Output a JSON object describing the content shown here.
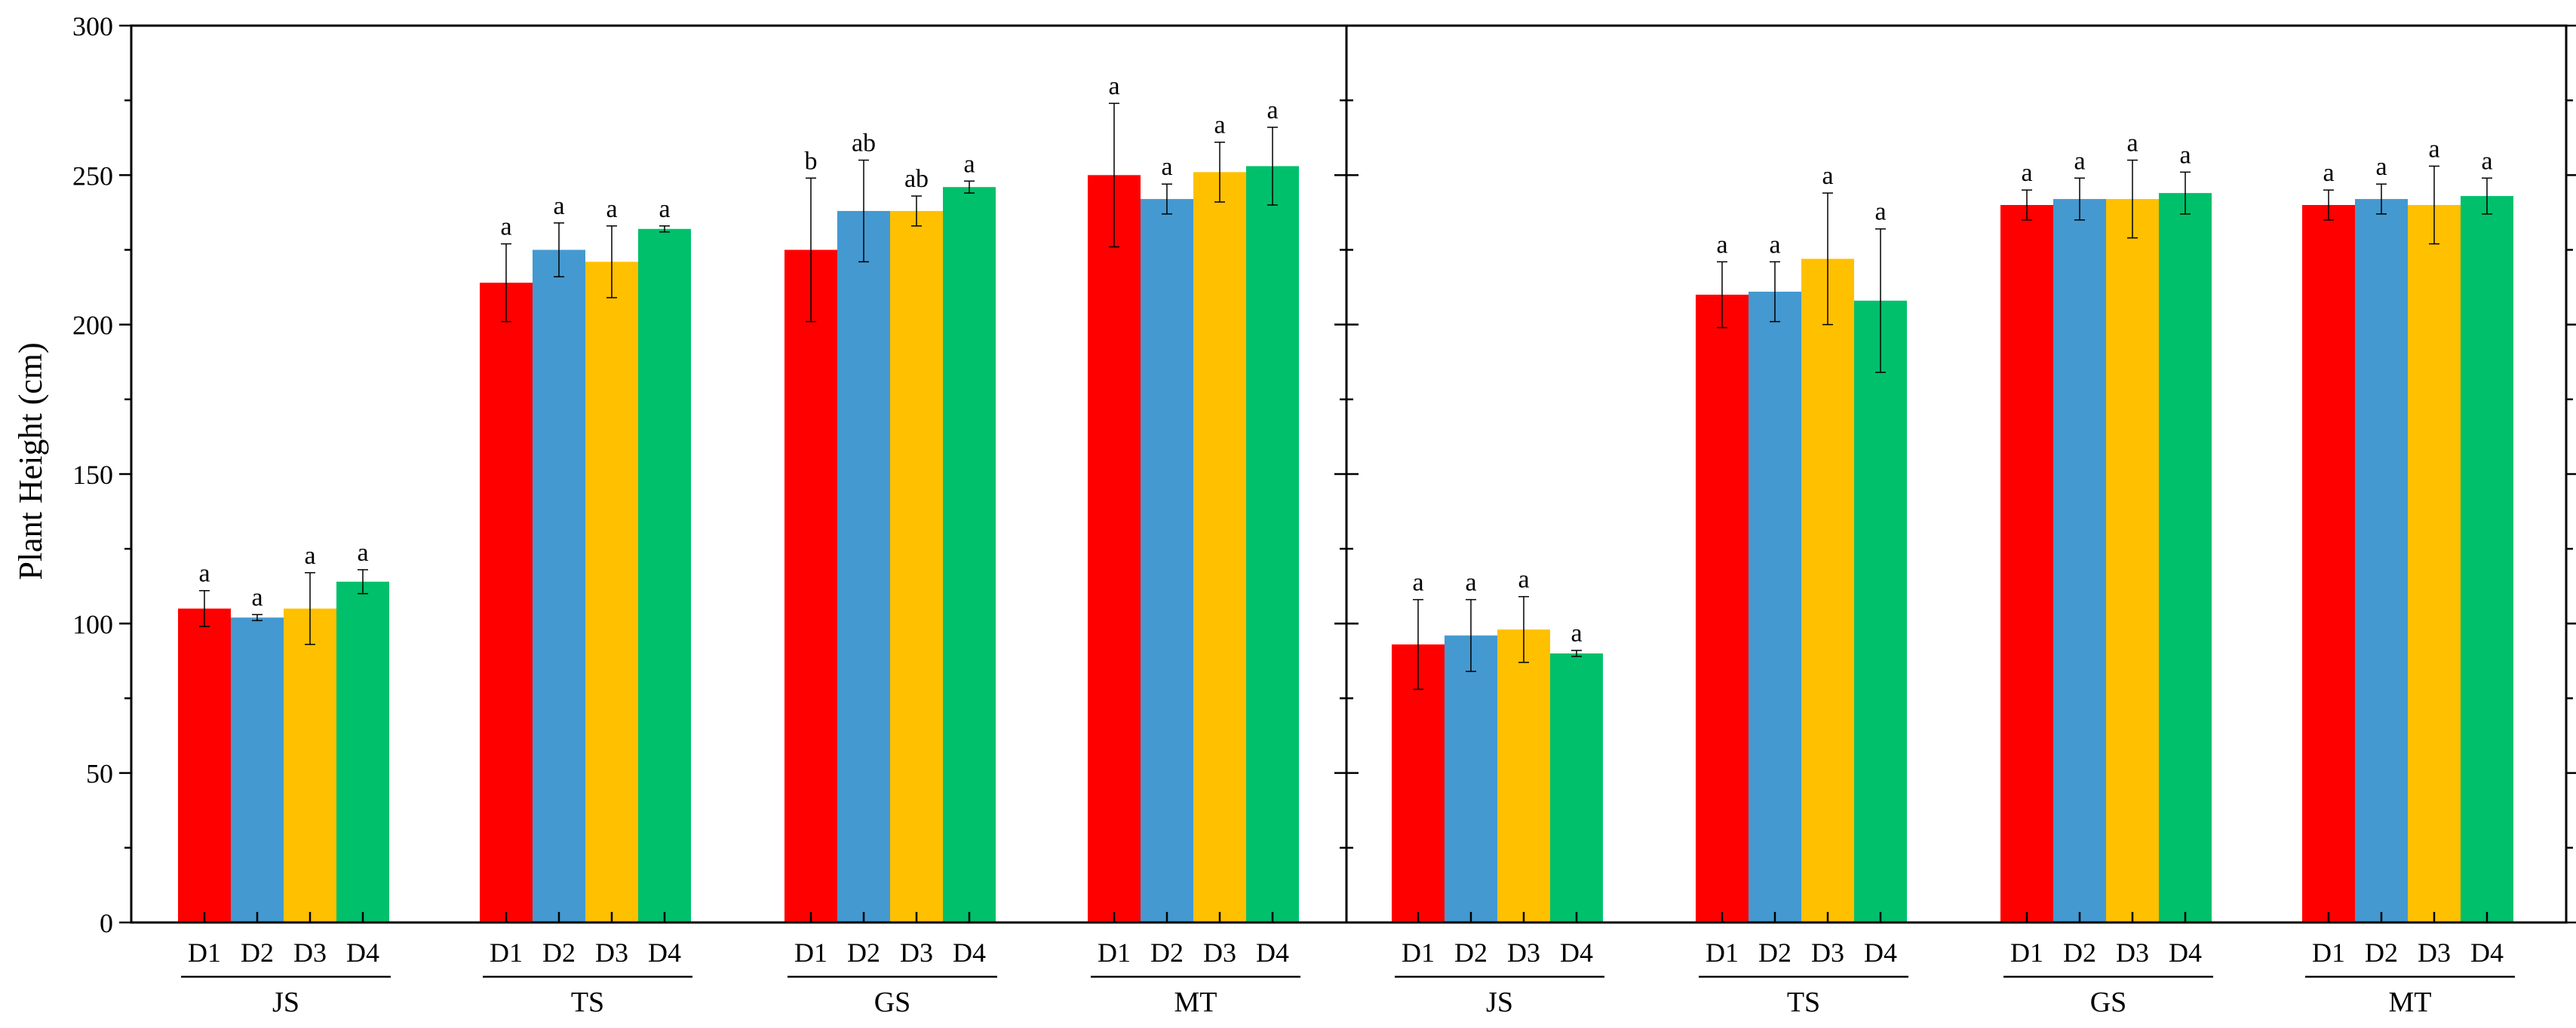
{
  "chart_data": {
    "type": "bar",
    "ylabel": "Plant Height (cm)",
    "ylim": [
      0,
      300
    ],
    "yticks": [
      0,
      50,
      100,
      150,
      200,
      250,
      300
    ],
    "colors": {
      "D1": "#ff0000",
      "D2": "#4499d0",
      "D3": "#ffc000",
      "D4": "#00c06b"
    },
    "panels": [
      {
        "groups": [
          {
            "name": "JS",
            "bars": [
              {
                "label": "D1",
                "value": 105,
                "error": 6,
                "sig": "a"
              },
              {
                "label": "D2",
                "value": 102,
                "error": 1,
                "sig": "a"
              },
              {
                "label": "D3",
                "value": 105,
                "error": 12,
                "sig": "a"
              },
              {
                "label": "D4",
                "value": 114,
                "error": 4,
                "sig": "a"
              }
            ]
          },
          {
            "name": "TS",
            "bars": [
              {
                "label": "D1",
                "value": 214,
                "error": 13,
                "sig": "a"
              },
              {
                "label": "D2",
                "value": 225,
                "error": 9,
                "sig": "a"
              },
              {
                "label": "D3",
                "value": 221,
                "error": 12,
                "sig": "a"
              },
              {
                "label": "D4",
                "value": 232,
                "error": 1,
                "sig": "a"
              }
            ]
          },
          {
            "name": "GS",
            "bars": [
              {
                "label": "D1",
                "value": 225,
                "error": 24,
                "sig": "b"
              },
              {
                "label": "D2",
                "value": 238,
                "error": 17,
                "sig": "ab"
              },
              {
                "label": "D3",
                "value": 238,
                "error": 5,
                "sig": "ab"
              },
              {
                "label": "D4",
                "value": 246,
                "error": 2,
                "sig": "a"
              }
            ]
          },
          {
            "name": "MT",
            "bars": [
              {
                "label": "D1",
                "value": 250,
                "error": 24,
                "sig": "a"
              },
              {
                "label": "D2",
                "value": 242,
                "error": 5,
                "sig": "a"
              },
              {
                "label": "D3",
                "value": 251,
                "error": 10,
                "sig": "a"
              },
              {
                "label": "D4",
                "value": 253,
                "error": 13,
                "sig": "a"
              }
            ]
          }
        ]
      },
      {
        "groups": [
          {
            "name": "JS",
            "bars": [
              {
                "label": "D1",
                "value": 93,
                "error": 15,
                "sig": "a"
              },
              {
                "label": "D2",
                "value": 96,
                "error": 12,
                "sig": "a"
              },
              {
                "label": "D3",
                "value": 98,
                "error": 11,
                "sig": "a"
              },
              {
                "label": "D4",
                "value": 90,
                "error": 1,
                "sig": "a"
              }
            ]
          },
          {
            "name": "TS",
            "bars": [
              {
                "label": "D1",
                "value": 210,
                "error": 11,
                "sig": "a"
              },
              {
                "label": "D2",
                "value": 211,
                "error": 10,
                "sig": "a"
              },
              {
                "label": "D3",
                "value": 222,
                "error": 22,
                "sig": "a"
              },
              {
                "label": "D4",
                "value": 208,
                "error": 24,
                "sig": "a"
              }
            ]
          },
          {
            "name": "GS",
            "bars": [
              {
                "label": "D1",
                "value": 240,
                "error": 5,
                "sig": "a"
              },
              {
                "label": "D2",
                "value": 242,
                "error": 7,
                "sig": "a"
              },
              {
                "label": "D3",
                "value": 242,
                "error": 13,
                "sig": "a"
              },
              {
                "label": "D4",
                "value": 244,
                "error": 7,
                "sig": "a"
              }
            ]
          },
          {
            "name": "MT",
            "bars": [
              {
                "label": "D1",
                "value": 240,
                "error": 5,
                "sig": "a"
              },
              {
                "label": "D2",
                "value": 242,
                "error": 5,
                "sig": "a"
              },
              {
                "label": "D3",
                "value": 240,
                "error": 13,
                "sig": "a"
              },
              {
                "label": "D4",
                "value": 243,
                "error": 6,
                "sig": "a"
              }
            ]
          }
        ]
      }
    ]
  }
}
